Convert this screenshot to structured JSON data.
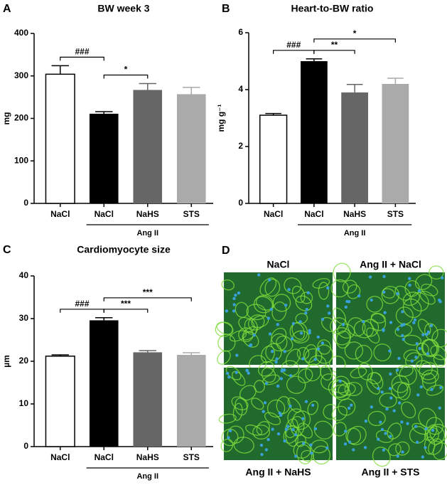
{
  "chart_data": [
    {
      "type": "bar",
      "panel_label": "A",
      "title": "BW week 3",
      "y_label": "mg",
      "categories": [
        "NaCl",
        "NaCl",
        "NaHS",
        "STS"
      ],
      "values": [
        304,
        211,
        267,
        257
      ],
      "errors": [
        20,
        5,
        15,
        16
      ],
      "colors": [
        "#ffffff",
        "#000000",
        "#666666",
        "#aaaaaa"
      ],
      "ylim": [
        0,
        400
      ],
      "yticks": [
        0,
        100,
        200,
        300,
        400
      ],
      "group": {
        "label": "Ang II",
        "from": 1,
        "to": 3
      },
      "annotations": [
        {
          "text": "###",
          "from": 0,
          "to": 1
        },
        {
          "text": "*",
          "from": 1,
          "to": 2
        }
      ]
    },
    {
      "type": "bar",
      "panel_label": "B",
      "title": "Heart-to-BW ratio",
      "y_label": "mg g⁻¹",
      "categories": [
        "NaCl",
        "NaCl",
        "NaHS",
        "STS"
      ],
      "values": [
        3.1,
        5.0,
        3.9,
        4.2
      ],
      "errors": [
        0.06,
        0.08,
        0.28,
        0.2
      ],
      "colors": [
        "#ffffff",
        "#000000",
        "#666666",
        "#aaaaaa"
      ],
      "ylim": [
        0,
        6
      ],
      "yticks": [
        0,
        2,
        4,
        6
      ],
      "group": {
        "label": "Ang II",
        "from": 1,
        "to": 3
      },
      "annotations": [
        {
          "text": "###",
          "from": 0,
          "to": 1
        },
        {
          "text": "**",
          "from": 1,
          "to": 2
        },
        {
          "text": "*",
          "from": 1,
          "to": 3
        }
      ]
    },
    {
      "type": "bar",
      "panel_label": "C",
      "title": "Cardiomyocyte size",
      "y_label": "µm",
      "categories": [
        "NaCl",
        "NaCl",
        "NaHS",
        "STS"
      ],
      "values": [
        21.2,
        29.6,
        22.1,
        21.5
      ],
      "errors": [
        0.3,
        0.6,
        0.4,
        0.5
      ],
      "colors": [
        "#ffffff",
        "#000000",
        "#666666",
        "#aaaaaa"
      ],
      "ylim": [
        0,
        40
      ],
      "yticks": [
        0,
        10,
        20,
        30,
        40
      ],
      "group": {
        "label": "Ang II",
        "from": 1,
        "to": 3
      },
      "annotations": [
        {
          "text": "###",
          "from": 0,
          "to": 1
        },
        {
          "text": "***",
          "from": 1,
          "to": 2
        },
        {
          "text": "***",
          "from": 1,
          "to": 3
        }
      ]
    }
  ],
  "image_panel": {
    "panel_label": "D",
    "tiles": [
      "NaCl",
      "Ang II + NaCl",
      "Ang II + NaHS",
      "Ang II + STS"
    ]
  }
}
